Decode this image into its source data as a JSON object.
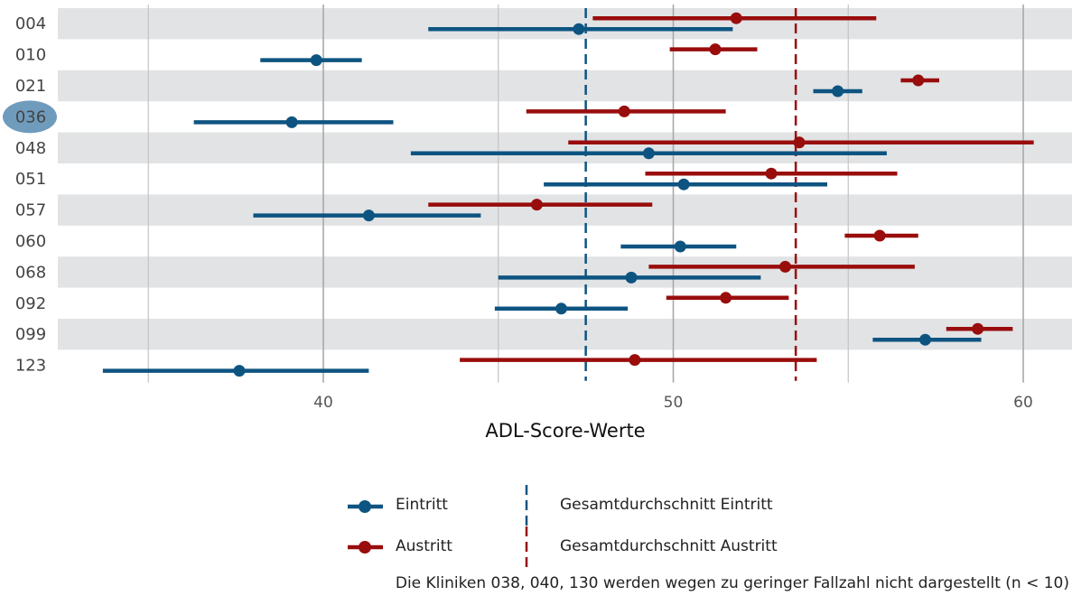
{
  "chart_data": {
    "type": "forest-interval",
    "xlabel": "ADL-Score-Werte",
    "x_ticks": [
      40,
      50,
      60
    ],
    "xlim": [
      34,
      61.5
    ],
    "highlighted_category": "036",
    "categories": [
      "004",
      "010",
      "021",
      "036",
      "048",
      "051",
      "057",
      "060",
      "068",
      "092",
      "099",
      "123"
    ],
    "series": [
      {
        "name": "Eintritt",
        "color": "#0e5481",
        "points": [
          {
            "category": "004",
            "value": 47.3,
            "low": 43.0,
            "high": 51.7
          },
          {
            "category": "010",
            "value": 39.8,
            "low": 38.2,
            "high": 41.1
          },
          {
            "category": "021",
            "value": 54.7,
            "low": 54.0,
            "high": 55.4
          },
          {
            "category": "036",
            "value": 39.1,
            "low": 36.3,
            "high": 42.0
          },
          {
            "category": "048",
            "value": 49.3,
            "low": 42.5,
            "high": 56.1
          },
          {
            "category": "051",
            "value": 50.3,
            "low": 46.3,
            "high": 54.4
          },
          {
            "category": "057",
            "value": 41.3,
            "low": 38.0,
            "high": 44.5
          },
          {
            "category": "060",
            "value": 50.2,
            "low": 48.5,
            "high": 51.8
          },
          {
            "category": "068",
            "value": 48.8,
            "low": 45.0,
            "high": 52.5
          },
          {
            "category": "092",
            "value": 46.8,
            "low": 44.9,
            "high": 48.7
          },
          {
            "category": "099",
            "value": 57.2,
            "low": 55.7,
            "high": 58.8
          },
          {
            "category": "123",
            "value": 37.6,
            "low": 33.7,
            "high": 41.3
          }
        ]
      },
      {
        "name": "Austritt",
        "color": "#990d0d",
        "points": [
          {
            "category": "004",
            "value": 51.8,
            "low": 47.7,
            "high": 55.8
          },
          {
            "category": "010",
            "value": 51.2,
            "low": 49.9,
            "high": 52.4
          },
          {
            "category": "021",
            "value": 57.0,
            "low": 56.5,
            "high": 57.6
          },
          {
            "category": "036",
            "value": 48.6,
            "low": 45.8,
            "high": 51.5
          },
          {
            "category": "048",
            "value": 53.6,
            "low": 47.0,
            "high": 60.3
          },
          {
            "category": "051",
            "value": 52.8,
            "low": 49.2,
            "high": 56.4
          },
          {
            "category": "057",
            "value": 46.1,
            "low": 43.0,
            "high": 49.4
          },
          {
            "category": "060",
            "value": 55.9,
            "low": 54.9,
            "high": 57.0
          },
          {
            "category": "068",
            "value": 53.2,
            "low": 49.3,
            "high": 56.9
          },
          {
            "category": "092",
            "value": 51.5,
            "low": 49.8,
            "high": 53.3
          },
          {
            "category": "099",
            "value": 58.7,
            "low": 57.8,
            "high": 59.7
          },
          {
            "category": "123",
            "value": 48.9,
            "low": 43.9,
            "high": 54.1
          }
        ]
      }
    ],
    "reference_lines": [
      {
        "name": "Gesamtdurchschnitt Eintritt",
        "value": 47.5,
        "color": "#0e5481",
        "style": "dashed"
      },
      {
        "name": "Gesamtdurchschnitt Austritt",
        "value": 53.5,
        "color": "#990d0d",
        "style": "dashed"
      }
    ],
    "grid": "vertical",
    "row_banding": true,
    "legend_position": "bottom",
    "highlight_color": "#6f9bbc",
    "band_color": "#e1e3e5",
    "note": "Die Kliniken 038, 040, 130 werden wegen zu geringer Fallzahl nicht dargestellt (n < 10)"
  }
}
